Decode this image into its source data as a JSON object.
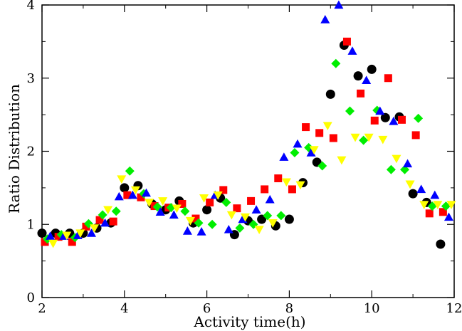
{
  "chart_data": {
    "type": "scatter",
    "xlabel": "Activity time(h)",
    "ylabel": "Ratio Distribution",
    "xlim": [
      2,
      12
    ],
    "ylim": [
      0,
      4
    ],
    "xticks": [
      2,
      4,
      6,
      8,
      10,
      12
    ],
    "yticks": [
      0,
      1,
      2,
      3,
      4
    ],
    "grid": false,
    "series": [
      {
        "marker": "circle",
        "color": "#000000",
        "x": [
          2.0,
          2.33,
          2.67,
          3.0,
          3.33,
          3.67,
          4.0,
          4.33,
          4.67,
          5.0,
          5.33,
          5.67,
          6.0,
          6.33,
          6.67,
          7.0,
          7.33,
          7.67,
          8.0,
          8.33,
          8.67,
          9.0,
          9.33,
          9.67,
          10.0,
          10.33,
          10.67,
          11.0,
          11.33,
          11.67
        ],
        "y": [
          0.88,
          0.88,
          0.88,
          0.88,
          0.95,
          1.02,
          1.5,
          1.53,
          1.28,
          1.2,
          1.32,
          1.02,
          1.2,
          1.36,
          0.86,
          1.05,
          1.07,
          0.98,
          1.07,
          1.57,
          1.85,
          2.78,
          3.45,
          3.03,
          3.12,
          2.46,
          2.47,
          1.42,
          1.3,
          0.73
        ]
      },
      {
        "marker": "square",
        "color": "#ff0000",
        "x": [
          2.07,
          2.4,
          2.73,
          3.07,
          3.4,
          3.73,
          4.07,
          4.4,
          4.73,
          5.07,
          5.4,
          5.73,
          6.07,
          6.4,
          6.73,
          7.07,
          7.4,
          7.73,
          8.07,
          8.4,
          8.73,
          9.07,
          9.4,
          9.73,
          10.07,
          10.4,
          10.73,
          11.07,
          11.4,
          11.73
        ],
        "y": [
          0.76,
          0.83,
          0.76,
          0.97,
          1.06,
          1.04,
          1.4,
          1.37,
          1.25,
          1.23,
          1.28,
          1.08,
          1.3,
          1.47,
          1.22,
          1.32,
          1.48,
          1.63,
          1.48,
          2.33,
          2.25,
          2.18,
          3.5,
          2.79,
          2.42,
          3.0,
          2.43,
          2.22,
          1.15,
          1.17
        ]
      },
      {
        "marker": "diamond",
        "color": "#00ee00",
        "x": [
          2.13,
          2.47,
          2.8,
          3.13,
          3.47,
          3.8,
          4.13,
          4.47,
          4.8,
          5.13,
          5.47,
          5.8,
          6.13,
          6.47,
          6.8,
          7.13,
          7.47,
          7.8,
          8.13,
          8.47,
          8.8,
          9.13,
          9.47,
          9.8,
          10.13,
          10.47,
          10.8,
          11.13,
          11.47,
          11.8
        ],
        "y": [
          0.8,
          0.86,
          0.82,
          1.01,
          1.13,
          1.18,
          1.73,
          1.42,
          1.24,
          1.23,
          1.18,
          1.02,
          1.0,
          1.3,
          0.95,
          1.0,
          1.12,
          1.12,
          1.98,
          2.05,
          1.8,
          3.2,
          2.55,
          2.15,
          2.56,
          1.75,
          1.75,
          2.45,
          1.25,
          1.25
        ]
      },
      {
        "marker": "triangle-up",
        "color": "#0000ff",
        "x": [
          2.2,
          2.53,
          2.87,
          3.2,
          3.53,
          3.87,
          4.2,
          4.53,
          4.87,
          5.2,
          5.53,
          5.87,
          6.2,
          6.53,
          6.87,
          7.2,
          7.53,
          7.87,
          8.2,
          8.53,
          8.87,
          9.2,
          9.53,
          9.87,
          10.2,
          10.53,
          10.87,
          11.2,
          11.53,
          11.87
        ],
        "y": [
          0.84,
          0.84,
          0.85,
          0.88,
          1.02,
          1.38,
          1.4,
          1.43,
          1.17,
          1.13,
          0.91,
          0.9,
          1.4,
          0.93,
          1.07,
          1.2,
          1.34,
          1.92,
          2.1,
          1.98,
          3.8,
          4.0,
          3.37,
          2.97,
          2.55,
          2.41,
          1.83,
          1.48,
          1.4,
          1.1
        ]
      },
      {
        "marker": "triangle-down",
        "color": "#ffff00",
        "x": [
          2.27,
          2.6,
          2.93,
          3.27,
          3.6,
          3.93,
          4.27,
          4.6,
          4.93,
          5.27,
          5.6,
          5.93,
          6.27,
          6.6,
          6.93,
          7.27,
          7.6,
          7.93,
          8.27,
          8.6,
          8.93,
          9.27,
          9.6,
          9.93,
          10.27,
          10.6,
          10.93,
          11.27,
          11.6,
          11.93
        ],
        "y": [
          0.74,
          0.85,
          0.88,
          0.95,
          1.2,
          1.62,
          1.47,
          1.3,
          1.32,
          1.22,
          1.05,
          1.36,
          1.4,
          1.13,
          1.1,
          0.93,
          1.02,
          1.58,
          1.54,
          2.02,
          2.35,
          1.88,
          2.19,
          2.19,
          2.16,
          1.9,
          1.55,
          1.27,
          1.27,
          1.27
        ]
      }
    ]
  }
}
